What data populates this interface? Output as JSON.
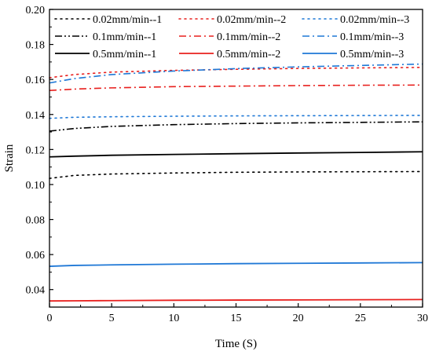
{
  "chart_data": {
    "type": "line",
    "title": "",
    "xlabel": "Time (S)",
    "ylabel": "Strain",
    "xlim": [
      0,
      30
    ],
    "ylim": [
      0.03,
      0.2
    ],
    "x_ticks": [
      0,
      5,
      10,
      15,
      20,
      25,
      30
    ],
    "y_ticks": [
      0.04,
      0.06,
      0.08,
      0.1,
      0.12,
      0.14,
      0.16,
      0.18,
      0.2
    ],
    "x_tick_labels": [
      "0",
      "5",
      "10",
      "15",
      "20",
      "25",
      "30"
    ],
    "y_tick_labels": [
      "0.04",
      "0.06",
      "0.08",
      "0.10",
      "0.12",
      "0.14",
      "0.16",
      "0.18",
      "0.20"
    ],
    "grid": false,
    "legend_position": "top",
    "legend_columns": 3,
    "series": [
      {
        "name": "0.02mm/min--1",
        "color": "#000000",
        "dash": "dot",
        "x": [
          0,
          2,
          5,
          10,
          15,
          20,
          25,
          30
        ],
        "y": [
          0.1035,
          0.1052,
          0.106,
          0.1066,
          0.107,
          0.1072,
          0.1073,
          0.1074
        ]
      },
      {
        "name": "0.02mm/min--2",
        "color": "#e8201e",
        "dash": "dot",
        "x": [
          0,
          2,
          5,
          10,
          15,
          20,
          25,
          30
        ],
        "y": [
          0.161,
          0.1628,
          0.1642,
          0.1652,
          0.1658,
          0.1663,
          0.1666,
          0.1669
        ]
      },
      {
        "name": "0.02mm/min--3",
        "color": "#1f78d6",
        "dash": "dot",
        "x": [
          0,
          2,
          5,
          10,
          15,
          20,
          25,
          30
        ],
        "y": [
          0.1378,
          0.1384,
          0.1387,
          0.139,
          0.1392,
          0.1393,
          0.1394,
          0.1395
        ]
      },
      {
        "name": "0.1mm/min--1",
        "color": "#000000",
        "dash": "dashdotdot",
        "x": [
          0,
          2,
          5,
          10,
          15,
          20,
          25,
          30
        ],
        "y": [
          0.1305,
          0.132,
          0.1332,
          0.1342,
          0.1348,
          0.1352,
          0.1355,
          0.1358
        ]
      },
      {
        "name": "0.1mm/min--2",
        "color": "#e8201e",
        "dash": "dashdot",
        "x": [
          0,
          2,
          5,
          10,
          15,
          20,
          25,
          30
        ],
        "y": [
          0.1537,
          0.1545,
          0.1552,
          0.1559,
          0.1562,
          0.1565,
          0.1567,
          0.1568
        ]
      },
      {
        "name": "0.1mm/min--3",
        "color": "#1f78d6",
        "dash": "dashdot",
        "x": [
          0,
          2,
          5,
          10,
          15,
          20,
          25,
          30
        ],
        "y": [
          0.158,
          0.1605,
          0.1628,
          0.1648,
          0.1662,
          0.1672,
          0.168,
          0.1688
        ]
      },
      {
        "name": "0.5mm/min--1",
        "color": "#000000",
        "dash": "solid",
        "x": [
          0,
          2,
          5,
          10,
          15,
          20,
          25,
          30
        ],
        "y": [
          0.1158,
          0.1162,
          0.1167,
          0.1172,
          0.1176,
          0.118,
          0.1183,
          0.1187
        ]
      },
      {
        "name": "0.5mm/min--2",
        "color": "#e8201e",
        "dash": "solid",
        "x": [
          0,
          2,
          5,
          10,
          15,
          20,
          25,
          30
        ],
        "y": [
          0.0335,
          0.0336,
          0.0337,
          0.0339,
          0.034,
          0.0341,
          0.0342,
          0.0343
        ]
      },
      {
        "name": "0.5mm/min--3",
        "color": "#1f78d6",
        "dash": "solid",
        "x": [
          0,
          2,
          5,
          10,
          15,
          20,
          25,
          30
        ],
        "y": [
          0.0533,
          0.0538,
          0.0541,
          0.0545,
          0.0548,
          0.055,
          0.0552,
          0.0554
        ]
      }
    ]
  }
}
